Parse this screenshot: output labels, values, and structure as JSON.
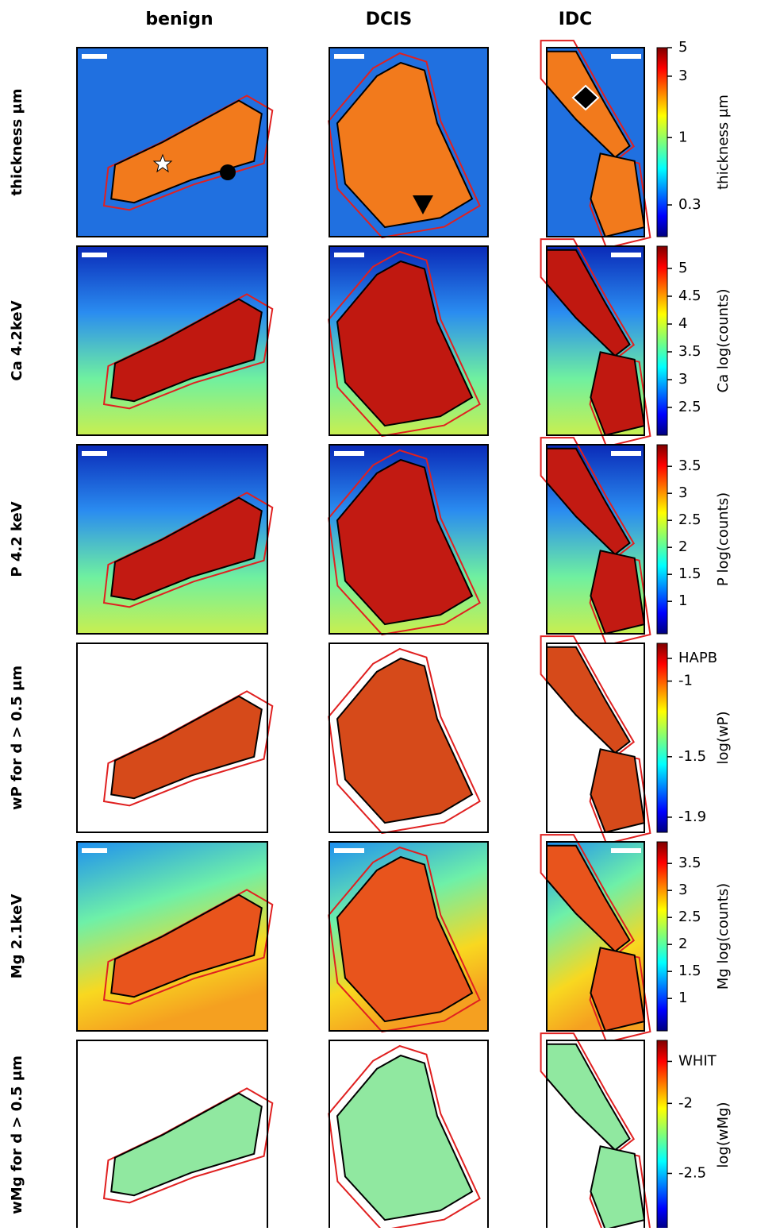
{
  "column_titles": [
    "benign",
    "DCIS",
    "IDC"
  ],
  "rows": [
    {
      "label": "thickness μm",
      "colorbar": {
        "label": "thickness μm",
        "scale": "log",
        "lim": [
          0.17,
          5
        ],
        "ticks": [
          0.3,
          1,
          3,
          5
        ]
      }
    },
    {
      "label": "Ca 4.2keV",
      "colorbar": {
        "label": "Ca log(counts)",
        "scale": "linear",
        "lim": [
          2.0,
          5.4
        ],
        "ticks": [
          2.5,
          3,
          3.5,
          4,
          4.5,
          5
        ]
      }
    },
    {
      "label": "P 4.2 keV",
      "colorbar": {
        "label": "P log(counts)",
        "scale": "linear",
        "lim": [
          0.4,
          3.9
        ],
        "ticks": [
          1,
          1.5,
          2,
          2.5,
          3,
          3.5
        ]
      }
    },
    {
      "label": "wP for d > 0.5 μm",
      "colorbar": {
        "label": "log(wP)",
        "scale": "linear",
        "lim": [
          -2.0,
          -0.75
        ],
        "ticks": [
          {
            "value": -0.85,
            "label": "HAPB"
          },
          -1,
          -1.5,
          -1.9
        ]
      }
    },
    {
      "label": "Mg 2.1keV",
      "colorbar": {
        "label": "Mg log(counts)",
        "scale": "linear",
        "lim": [
          0.4,
          3.9
        ],
        "ticks": [
          1,
          1.5,
          2,
          2.5,
          3,
          3.5
        ]
      }
    },
    {
      "label": "wMg for d > 0.5 μm",
      "colorbar": {
        "label": "log(wMg)",
        "scale": "linear",
        "lim": [
          -2.9,
          -1.55
        ],
        "ticks": [
          {
            "value": -1.7,
            "label": "WHIT"
          },
          -2,
          -2.5
        ]
      }
    }
  ]
}
